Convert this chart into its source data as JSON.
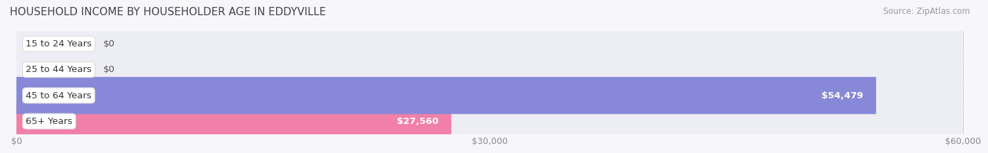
{
  "title": "HOUSEHOLD INCOME BY HOUSEHOLDER AGE IN EDDYVILLE",
  "source": "Source: ZipAtlas.com",
  "categories": [
    "15 to 24 Years",
    "25 to 44 Years",
    "45 to 64 Years",
    "65+ Years"
  ],
  "values": [
    0,
    0,
    54479,
    27560
  ],
  "bar_colors": [
    "#c9a8d4",
    "#76c8c8",
    "#8888d8",
    "#f080a8"
  ],
  "bar_bg_color": "#ededf4",
  "x_max": 60000,
  "x_ticks": [
    0,
    30000,
    60000
  ],
  "x_tick_labels": [
    "$0",
    "$30,000",
    "$60,000"
  ],
  "value_labels": [
    "$0",
    "$0",
    "$54,479",
    "$27,560"
  ],
  "background_color": "#f7f7fb",
  "bar_height": 0.72,
  "bar_gap": 0.18,
  "title_fontsize": 11,
  "label_fontsize": 9.5,
  "tick_fontsize": 9,
  "source_fontsize": 8.5
}
